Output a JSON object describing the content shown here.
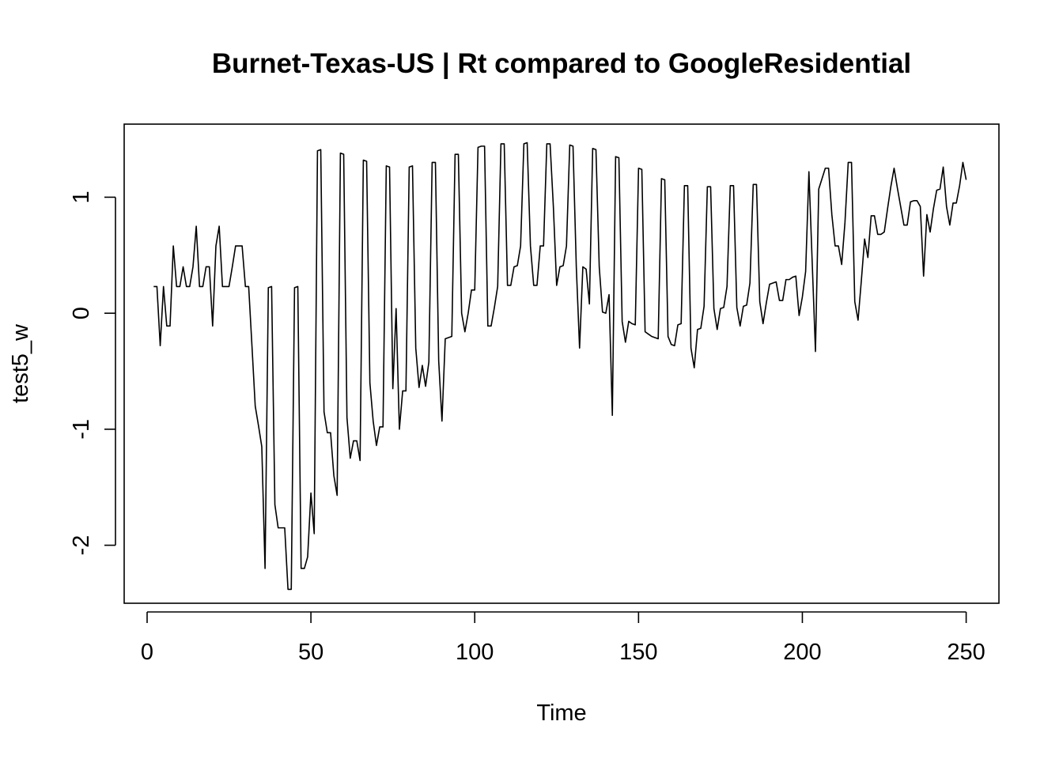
{
  "chart_data": {
    "type": "line",
    "title": "Burnet-Texas-US | Rt compared to GoogleResidential",
    "xlabel": "Time",
    "ylabel": "test5_w",
    "xlim": [
      -7,
      260
    ],
    "ylim": [
      -2.5,
      1.63
    ],
    "x_ticks": [
      0,
      50,
      100,
      150,
      200,
      250
    ],
    "x_tick_labels": [
      "0",
      "50",
      "100",
      "150",
      "200",
      "250"
    ],
    "y_ticks": [
      -2,
      -1,
      0,
      1
    ],
    "y_tick_labels": [
      "-2",
      "-1",
      "0",
      "1"
    ],
    "grid": false,
    "legend": "none",
    "series": [
      {
        "color": "#000000",
        "x_start": 2,
        "x_step": 1,
        "values": [
          0.23,
          0.23,
          -0.28,
          0.23,
          -0.11,
          -0.11,
          0.58,
          0.23,
          0.23,
          0.4,
          0.23,
          0.23,
          0.4,
          0.75,
          0.23,
          0.23,
          0.4,
          0.4,
          -0.11,
          0.58,
          0.75,
          0.23,
          0.23,
          0.23,
          0.4,
          0.58,
          0.58,
          0.58,
          0.23,
          0.23,
          -0.28,
          -0.8,
          -0.97,
          -1.15,
          -2.2,
          0.22,
          0.23,
          -1.65,
          -1.85,
          -1.85,
          -1.85,
          -2.38,
          -2.38,
          0.22,
          0.23,
          -2.2,
          -2.2,
          -2.1,
          -1.55,
          -1.9,
          1.4,
          1.41,
          -0.85,
          -1.03,
          -1.03,
          -1.4,
          -1.57,
          1.38,
          1.37,
          -0.9,
          -1.25,
          -1.1,
          -1.1,
          -1.27,
          1.32,
          1.31,
          -0.6,
          -0.93,
          -1.14,
          -0.98,
          -0.98,
          1.27,
          1.26,
          -0.65,
          0.04,
          -1.0,
          -0.67,
          -0.67,
          1.26,
          1.27,
          -0.3,
          -0.64,
          -0.45,
          -0.63,
          -0.42,
          1.3,
          1.3,
          -0.41,
          -0.93,
          -0.22,
          -0.21,
          -0.2,
          1.37,
          1.37,
          0.0,
          -0.16,
          0.0,
          0.2,
          0.2,
          1.43,
          1.44,
          1.44,
          -0.11,
          -0.11,
          0.05,
          0.23,
          1.46,
          1.46,
          0.24,
          0.24,
          0.4,
          0.41,
          0.58,
          1.46,
          1.47,
          0.58,
          0.24,
          0.24,
          0.58,
          0.58,
          1.46,
          1.46,
          0.92,
          0.24,
          0.4,
          0.41,
          0.58,
          1.45,
          1.44,
          0.4,
          -0.3,
          0.4,
          0.38,
          0.08,
          1.42,
          1.41,
          0.4,
          0.01,
          0.0,
          0.16,
          -0.88,
          1.35,
          1.34,
          -0.07,
          -0.25,
          -0.07,
          -0.09,
          -0.1,
          1.25,
          1.24,
          -0.16,
          -0.18,
          -0.2,
          -0.21,
          -0.22,
          1.16,
          1.15,
          -0.2,
          -0.27,
          -0.28,
          -0.1,
          -0.09,
          1.1,
          1.1,
          -0.3,
          -0.47,
          -0.14,
          -0.13,
          0.06,
          1.09,
          1.09,
          0.04,
          -0.14,
          0.04,
          0.05,
          0.23,
          1.1,
          1.1,
          0.05,
          -0.11,
          0.06,
          0.07,
          0.26,
          1.11,
          1.11,
          0.1,
          -0.09,
          0.09,
          0.25,
          0.26,
          0.27,
          0.11,
          0.11,
          0.29,
          0.29,
          0.31,
          0.32,
          -0.02,
          0.14,
          0.36,
          1.22,
          0.44,
          -0.33,
          1.07,
          1.16,
          1.25,
          1.25,
          0.85,
          0.58,
          0.58,
          0.42,
          0.78,
          1.3,
          1.3,
          0.1,
          -0.06,
          0.28,
          0.64,
          0.48,
          0.84,
          0.84,
          0.68,
          0.68,
          0.7,
          0.9,
          1.09,
          1.25,
          1.08,
          0.92,
          0.76,
          0.76,
          0.96,
          0.97,
          0.97,
          0.92,
          0.32,
          0.85,
          0.7,
          0.9,
          1.06,
          1.07,
          1.26,
          0.92,
          0.76,
          0.95,
          0.95,
          1.1,
          1.3,
          1.15
        ]
      }
    ]
  }
}
